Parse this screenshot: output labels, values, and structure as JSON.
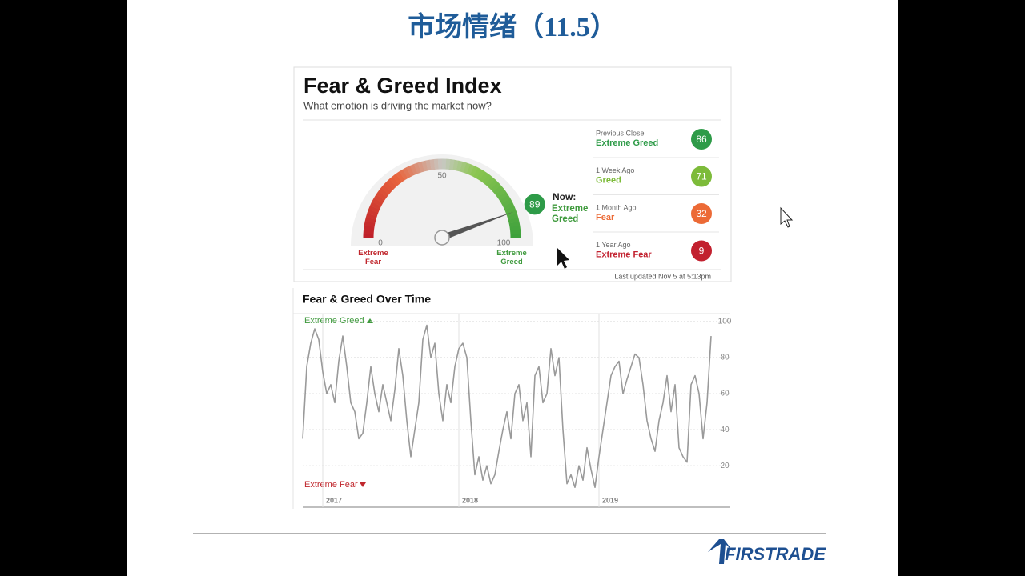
{
  "slide": {
    "title": "市场情绪（11.5）",
    "logo": "FIRSTRADE"
  },
  "gauge": {
    "title": "Fear & Greed Index",
    "subtitle": "What emotion is driving the market now?",
    "value": 89,
    "now_label": "Now:",
    "now_rating": "Extreme Greed",
    "ticks": [
      0,
      50,
      100
    ],
    "min_label": "Extreme Fear",
    "max_label": "Extreme Greed",
    "updated": "Last updated Nov 5 at 5:13pm"
  },
  "history": [
    {
      "label": "Previous Close",
      "rating": "Extreme Greed",
      "value": 86,
      "color": "#2e9b48"
    },
    {
      "label": "1 Week Ago",
      "rating": "Greed",
      "value": 71,
      "color": "#7dbb3a"
    },
    {
      "label": "1 Month Ago",
      "rating": "Fear",
      "value": 32,
      "color": "#ec6a36"
    },
    {
      "label": "1 Year Ago",
      "rating": "Extreme Fear",
      "value": 9,
      "color": "#c2212f"
    }
  ],
  "chart_data": {
    "type": "line",
    "title": "Fear & Greed Over Time",
    "color": "#9a9a9a",
    "upper_label": "Extreme Greed",
    "lower_label": "Extreme Fear",
    "categories": [
      null,
      null,
      null,
      null,
      null,
      "2017",
      null,
      null,
      null,
      null,
      null,
      null,
      null,
      null,
      null,
      null,
      null,
      null,
      null,
      null,
      null,
      null,
      null,
      null,
      null,
      null,
      null,
      null,
      null,
      null,
      null,
      null,
      null,
      null,
      null,
      null,
      null,
      null,
      null,
      "2018",
      null,
      null,
      null,
      null,
      null,
      null,
      null,
      null,
      null,
      null,
      null,
      null,
      null,
      null,
      null,
      null,
      null,
      null,
      null,
      null,
      null,
      null,
      null,
      null,
      null,
      null,
      null,
      null,
      null,
      null,
      null,
      null,
      null,
      null,
      "2019",
      null,
      null,
      null,
      null,
      null,
      null,
      null,
      null,
      null,
      null,
      null,
      null,
      null,
      null,
      null,
      null,
      null,
      null,
      null,
      null,
      null,
      null,
      null,
      null,
      null,
      null,
      null,
      null
    ],
    "values": [
      35,
      75,
      88,
      96,
      90,
      72,
      60,
      65,
      55,
      78,
      92,
      75,
      55,
      50,
      35,
      38,
      55,
      75,
      60,
      50,
      65,
      55,
      45,
      62,
      85,
      70,
      45,
      25,
      40,
      55,
      90,
      98,
      80,
      88,
      60,
      45,
      65,
      55,
      75,
      85,
      88,
      80,
      45,
      15,
      25,
      12,
      20,
      10,
      15,
      28,
      40,
      50,
      35,
      60,
      65,
      45,
      55,
      25,
      70,
      75,
      55,
      60,
      85,
      70,
      80,
      40,
      10,
      15,
      8,
      20,
      12,
      30,
      18,
      8,
      25,
      40,
      55,
      70,
      75,
      78,
      60,
      68,
      75,
      82,
      80,
      65,
      45,
      35,
      28,
      45,
      55,
      70,
      50,
      65,
      30,
      25,
      22,
      65,
      70,
      60,
      35,
      55,
      92
    ],
    "ylim": [
      -3,
      104
    ],
    "yticks": [
      20,
      40,
      60,
      80,
      100
    ],
    "grid": true
  }
}
